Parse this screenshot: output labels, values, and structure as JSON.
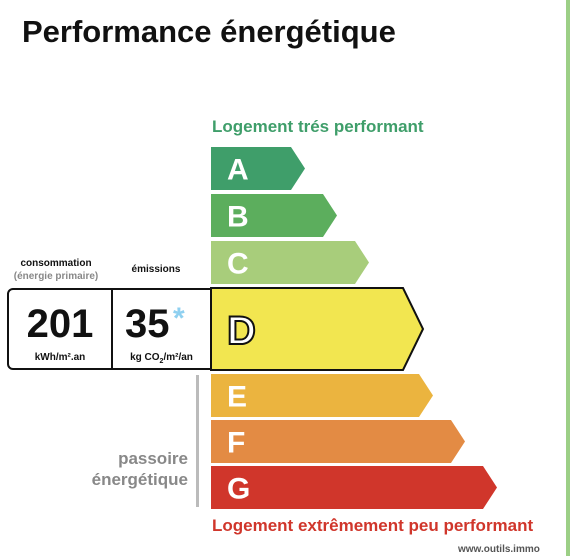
{
  "title": "Performance énergétique",
  "top_label": "Logement trés performant",
  "bottom_label": "Logement extrêmement peu performant",
  "footer": "www.outils.immo",
  "consumption": {
    "header": "consommation",
    "subheader": "(énergie primaire)",
    "value": "201",
    "unit": "kWh/m².an"
  },
  "emissions": {
    "header": "émissions",
    "value": "35",
    "asterisk": "*",
    "unit_prefix": "kg CO",
    "unit_sub": "2",
    "unit_suffix": "/m²/an"
  },
  "passoire": {
    "line1": "passoire",
    "line2": "énergétique"
  },
  "classes": [
    {
      "letter": "A",
      "color": "#3f9e6a",
      "active": false
    },
    {
      "letter": "B",
      "color": "#5cae5d",
      "active": false
    },
    {
      "letter": "C",
      "color": "#a8cd7b",
      "active": false
    },
    {
      "letter": "D",
      "color": "#f2e650",
      "active": true
    },
    {
      "letter": "E",
      "color": "#ebb43f",
      "active": false
    },
    {
      "letter": "F",
      "color": "#e38b44",
      "active": false
    },
    {
      "letter": "G",
      "color": "#d0362b",
      "active": false
    }
  ],
  "selected_class": "D"
}
